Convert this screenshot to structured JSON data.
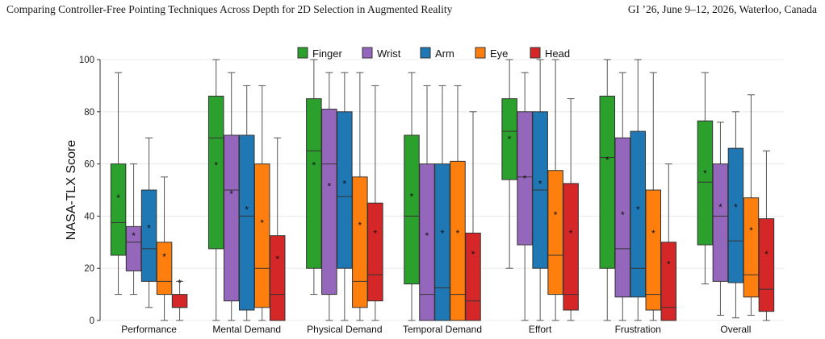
{
  "header": {
    "left": "Comparing Controller-Free Pointing Techniques Across Depth for 2D Selection in Augmented Reality",
    "right": "GI ’26, June 9–12, 2026, Waterloo, Canada"
  },
  "chart_data": {
    "type": "box",
    "ylabel": "NASA-TLX Score",
    "xlabel": "",
    "ylim": [
      0,
      100
    ],
    "yticks": [
      0,
      20,
      40,
      60,
      80,
      100
    ],
    "grid": true,
    "legend_position": "top-center",
    "mean_marker": "*",
    "categories": [
      "Performance",
      "Mental Demand",
      "Physical Demand",
      "Temporal Demand",
      "Effort",
      "Frustration",
      "Overall"
    ],
    "series": [
      {
        "name": "Finger",
        "color": "#2ca02c",
        "boxes": [
          {
            "min": 10,
            "q1": 25,
            "median": 37.5,
            "q3": 60,
            "max": 95,
            "mean": 47.5
          },
          {
            "min": 0,
            "q1": 27.5,
            "median": 70,
            "q3": 86,
            "max": 100,
            "mean": 60
          },
          {
            "min": 10,
            "q1": 20,
            "median": 65,
            "q3": 85,
            "max": 100,
            "mean": 60
          },
          {
            "min": 0,
            "q1": 14,
            "median": 40,
            "q3": 71,
            "max": 95,
            "mean": 48
          },
          {
            "min": 20,
            "q1": 54,
            "median": 72.5,
            "q3": 85,
            "max": 100,
            "mean": 70
          },
          {
            "min": 0,
            "q1": 20,
            "median": 62.5,
            "q3": 86,
            "max": 100,
            "mean": 62
          },
          {
            "min": 14,
            "q1": 29,
            "median": 53,
            "q3": 76.5,
            "max": 95,
            "mean": 57
          }
        ]
      },
      {
        "name": "Wrist",
        "color": "#9467bd",
        "boxes": [
          {
            "min": 10,
            "q1": 19,
            "median": 30,
            "q3": 36,
            "max": 60,
            "mean": 33
          },
          {
            "min": 0,
            "q1": 7.5,
            "median": 50,
            "q3": 71,
            "max": 95,
            "mean": 49
          },
          {
            "min": 0,
            "q1": 10,
            "median": 60,
            "q3": 81,
            "max": 95,
            "mean": 52
          },
          {
            "min": 0,
            "q1": 0,
            "median": 10,
            "q3": 60,
            "max": 90,
            "mean": 33
          },
          {
            "min": 0,
            "q1": 29,
            "median": 55,
            "q3": 80,
            "max": 95,
            "mean": 55
          },
          {
            "min": 0,
            "q1": 9,
            "median": 27.5,
            "q3": 70,
            "max": 95,
            "mean": 41
          },
          {
            "min": 2,
            "q1": 15,
            "median": 40,
            "q3": 60,
            "max": 76,
            "mean": 44
          }
        ]
      },
      {
        "name": "Arm",
        "color": "#1f77b4",
        "boxes": [
          {
            "min": 5,
            "q1": 15,
            "median": 27.5,
            "q3": 50,
            "max": 70,
            "mean": 36
          },
          {
            "min": 0,
            "q1": 4,
            "median": 40,
            "q3": 71,
            "max": 90,
            "mean": 43
          },
          {
            "min": 0,
            "q1": 20,
            "median": 47.5,
            "q3": 80,
            "max": 95,
            "mean": 53
          },
          {
            "min": 0,
            "q1": 0,
            "median": 12.5,
            "q3": 60,
            "max": 90,
            "mean": 34
          },
          {
            "min": 0,
            "q1": 20,
            "median": 50,
            "q3": 80,
            "max": 100,
            "mean": 53
          },
          {
            "min": 0,
            "q1": 9,
            "median": 20,
            "q3": 72.5,
            "max": 100,
            "mean": 43
          },
          {
            "min": 1,
            "q1": 14.5,
            "median": 30.5,
            "q3": 66,
            "max": 80,
            "mean": 44
          }
        ]
      },
      {
        "name": "Eye",
        "color": "#ff7f0e",
        "boxes": [
          {
            "min": 0,
            "q1": 10,
            "median": 15,
            "q3": 30,
            "max": 55,
            "mean": 25
          },
          {
            "min": 0,
            "q1": 5,
            "median": 20,
            "q3": 60,
            "max": 90,
            "mean": 38
          },
          {
            "min": 0,
            "q1": 5,
            "median": 15,
            "q3": 55,
            "max": 95,
            "mean": 37
          },
          {
            "min": 0,
            "q1": 0,
            "median": 10,
            "q3": 61,
            "max": 90,
            "mean": 34
          },
          {
            "min": 0,
            "q1": 10,
            "median": 25,
            "q3": 57.5,
            "max": 100,
            "mean": 41
          },
          {
            "min": 0,
            "q1": 4,
            "median": 10,
            "q3": 50,
            "max": 95,
            "mean": 34
          },
          {
            "min": 2,
            "q1": 9,
            "median": 17.5,
            "q3": 47,
            "max": 86.5,
            "mean": 35
          }
        ]
      },
      {
        "name": "Head",
        "color": "#d62728",
        "boxes": [
          {
            "min": 0,
            "q1": 5,
            "median": 5,
            "q3": 10,
            "max": 15,
            "mean": 15
          },
          {
            "min": 0,
            "q1": 0,
            "median": 10,
            "q3": 32.5,
            "max": 70,
            "mean": 24
          },
          {
            "min": 0,
            "q1": 7.5,
            "median": 17.5,
            "q3": 45,
            "max": 90,
            "mean": 34
          },
          {
            "min": 0,
            "q1": 0,
            "median": 7.5,
            "q3": 33.5,
            "max": 80,
            "mean": 26
          },
          {
            "min": 0,
            "q1": 4,
            "median": 10,
            "q3": 52.5,
            "max": 85,
            "mean": 34
          },
          {
            "min": 0,
            "q1": 0,
            "median": 5,
            "q3": 30,
            "max": 60,
            "mean": 22
          },
          {
            "min": 0,
            "q1": 3.5,
            "median": 12,
            "q3": 39,
            "max": 65,
            "mean": 26
          }
        ]
      }
    ]
  }
}
